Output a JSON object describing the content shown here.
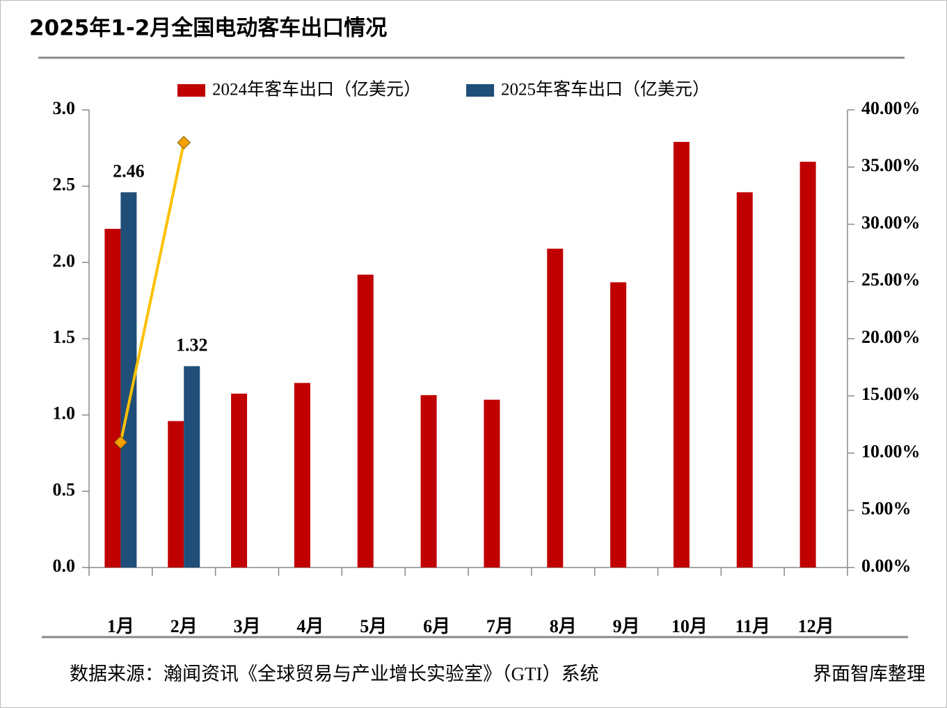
{
  "chart_data": {
    "type": "bar",
    "title": "2025年1-2月全国电动客车出口情况",
    "categories": [
      "1月",
      "2月",
      "3月",
      "4月",
      "5月",
      "6月",
      "7月",
      "8月",
      "9月",
      "10月",
      "11月",
      "12月"
    ],
    "series": [
      {
        "name": "2024年客车出口（亿美元）",
        "color": "#c00000",
        "values": [
          2.22,
          0.96,
          1.14,
          1.21,
          1.92,
          1.13,
          1.1,
          2.09,
          1.87,
          2.79,
          2.46,
          2.66
        ]
      },
      {
        "name": "2025年客车出口（亿美元）",
        "color": "#1f4e79",
        "values": [
          2.46,
          1.32,
          null,
          null,
          null,
          null,
          null,
          null,
          null,
          null,
          null,
          null
        ],
        "data_labels": true
      },
      {
        "type": "line",
        "axis": "y2",
        "color": "#ffc000",
        "marker_color": "#f5a000",
        "values": [
          10.94,
          37.14,
          null,
          null,
          null,
          null,
          null,
          null,
          null,
          null,
          null,
          null
        ]
      }
    ],
    "ylim": [
      0,
      3
    ],
    "yticks": [
      {
        "value": 0,
        "label": "0.0"
      },
      0.5,
      {
        "value": 1,
        "label": "1.0"
      },
      1.5,
      {
        "value": 2,
        "label": "2.0"
      },
      2.5,
      {
        "value": 3,
        "label": "3.0"
      }
    ],
    "y2lim": [
      0,
      40
    ],
    "y2ticks": [
      {
        "value": 0,
        "label": "0.00%"
      },
      {
        "value": 5,
        "label": "5.00%"
      },
      {
        "value": 10,
        "label": "10.00%"
      },
      {
        "value": 15,
        "label": "15.00%"
      },
      {
        "value": 20,
        "label": "20.00%"
      },
      {
        "value": 25,
        "label": "25.00%"
      },
      {
        "value": 30,
        "label": "30.00%"
      },
      {
        "value": 35,
        "label": "35.00%"
      },
      {
        "value": 40,
        "label": "40.00%"
      }
    ],
    "legend": "top",
    "source": "数据来源：瀚闻资讯《全球贸易与产业增长实验室》（GTI）系统",
    "credit": "界面智库整理"
  }
}
